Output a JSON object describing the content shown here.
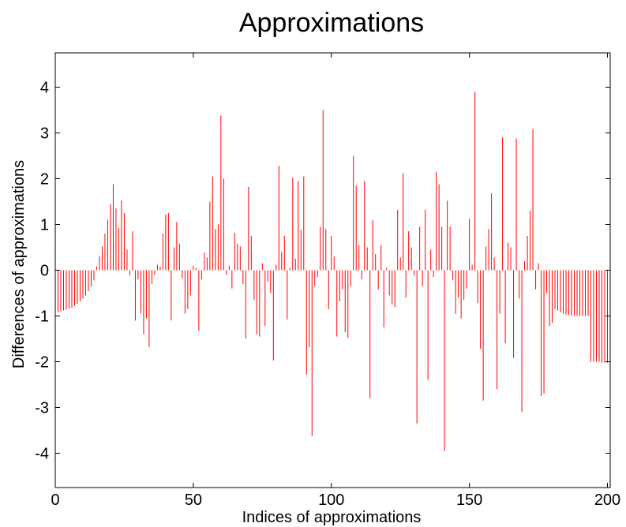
{
  "chart_data": {
    "type": "stem",
    "title": "Approximations",
    "xlabel": "Indices of approximations",
    "ylabel": "Differences of approximations",
    "xlim": [
      0,
      201
    ],
    "ylim": [
      -4.75,
      4.75
    ],
    "xticks": [
      0,
      50,
      100,
      150,
      200
    ],
    "yticks": [
      -4,
      -3,
      -2,
      -1,
      0,
      1,
      2,
      3,
      4
    ],
    "xtick_labels": [
      "0",
      "50",
      "100",
      "150",
      "200"
    ],
    "ytick_labels": [
      "-4",
      "-3",
      "-2",
      "-1",
      "0",
      "1",
      "2",
      "3",
      "4"
    ],
    "grid": false,
    "line_color": "#ff0000",
    "x": [
      1,
      2,
      3,
      4,
      5,
      6,
      7,
      8,
      9,
      10,
      11,
      12,
      13,
      14,
      15,
      16,
      17,
      18,
      19,
      20,
      21,
      22,
      23,
      24,
      25,
      26,
      27,
      28,
      29,
      30,
      31,
      32,
      33,
      34,
      35,
      36,
      37,
      38,
      39,
      40,
      41,
      42,
      43,
      44,
      45,
      46,
      47,
      48,
      49,
      50,
      51,
      52,
      53,
      54,
      55,
      56,
      57,
      58,
      59,
      60,
      61,
      62,
      63,
      64,
      65,
      66,
      67,
      68,
      69,
      70,
      71,
      72,
      73,
      74,
      75,
      76,
      77,
      78,
      79,
      80,
      81,
      82,
      83,
      84,
      85,
      86,
      87,
      88,
      89,
      90,
      91,
      92,
      93,
      94,
      95,
      96,
      97,
      98,
      99,
      100,
      101,
      102,
      103,
      104,
      105,
      106,
      107,
      108,
      109,
      110,
      111,
      112,
      113,
      114,
      115,
      116,
      117,
      118,
      119,
      120,
      121,
      122,
      123,
      124,
      125,
      126,
      127,
      128,
      129,
      130,
      131,
      132,
      133,
      134,
      135,
      136,
      137,
      138,
      139,
      140,
      141,
      142,
      143,
      144,
      145,
      146,
      147,
      148,
      149,
      150,
      151,
      152,
      153,
      154,
      155,
      156,
      157,
      158,
      159,
      160,
      161,
      162,
      163,
      164,
      165,
      166,
      167,
      168,
      169,
      170,
      171,
      172,
      173,
      174,
      175,
      176,
      177,
      178,
      179,
      180,
      181,
      182,
      183,
      184,
      185,
      186,
      187,
      188,
      189,
      190,
      191,
      192,
      193,
      194,
      195,
      196,
      197,
      198,
      199,
      200
    ],
    "y": [
      -0.92,
      -0.9,
      -0.88,
      -0.86,
      -0.84,
      -0.82,
      -0.78,
      -0.74,
      -0.68,
      -0.62,
      -0.55,
      -0.46,
      -0.36,
      -0.22,
      0.08,
      0.3,
      0.52,
      0.8,
      1.1,
      1.45,
      1.88,
      1.35,
      0.92,
      1.52,
      1.25,
      0.45,
      -0.12,
      0.85,
      -1.1,
      -0.2,
      -0.95,
      -1.4,
      -1.05,
      -1.68,
      -0.3,
      -0.1,
      0.12,
      0.08,
      0.8,
      1.22,
      1.25,
      -1.1,
      0.5,
      1.05,
      0.58,
      -0.18,
      -0.95,
      -0.85,
      -0.55,
      0.1,
      0.05,
      -1.32,
      -0.2,
      0.38,
      0.28,
      1.5,
      2.05,
      0.9,
      1.0,
      3.38,
      2.0,
      -0.1,
      0.1,
      -0.4,
      0.82,
      0.58,
      0.52,
      -0.3,
      -1.5,
      1.82,
      0.75,
      -0.65,
      -1.4,
      -1.45,
      0.15,
      -1.22,
      -0.25,
      -0.5,
      -1.97,
      0.12,
      2.28,
      0.4,
      0.75,
      -1.08,
      0.05,
      2.02,
      0.25,
      1.95,
      0.88,
      2.05,
      -2.28,
      -1.68,
      -3.62,
      -0.35,
      -0.15,
      0.95,
      3.5,
      0.9,
      -0.85,
      0.75,
      0.3,
      -1.45,
      -0.68,
      -0.42,
      -1.35,
      -1.48,
      -0.35,
      2.5,
      1.85,
      0.55,
      -0.2,
      1.95,
      0.5,
      -2.8,
      1.1,
      0.35,
      -0.42,
      0.55,
      -1.25,
      0.05,
      -0.55,
      -0.75,
      -0.8,
      1.32,
      0.28,
      2.12,
      -0.6,
      0.85,
      0.5,
      -0.12,
      -3.35,
      0.95,
      -0.35,
      1.32,
      -2.4,
      0.45,
      -0.15,
      2.15,
      1.88,
      0.95,
      -3.95,
      1.52,
      0.95,
      -0.22,
      -0.95,
      -0.6,
      -1.05,
      -0.65,
      -0.4,
      1.12,
      0.12,
      3.9,
      -0.72,
      -1.72,
      -2.85,
      0.52,
      0.9,
      1.68,
      0.28,
      -2.6,
      -0.95,
      2.9,
      -1.6,
      0.6,
      0.5,
      -1.92,
      2.88,
      -0.62,
      -3.1,
      0.2,
      0.75,
      1.3,
      3.08,
      -0.42,
      0.15,
      -2.75,
      -2.7,
      -0.5,
      -1.22,
      -1.15,
      -0.85,
      -0.88,
      -0.92,
      -0.95,
      -0.97,
      -0.98,
      -0.99,
      -1.0,
      -1.0,
      -1.0,
      -1.0,
      -1.0,
      -1.0,
      -2.0,
      -2.0,
      -2.0,
      -2.0,
      -2.02,
      -2.02,
      -2.02
    ]
  }
}
